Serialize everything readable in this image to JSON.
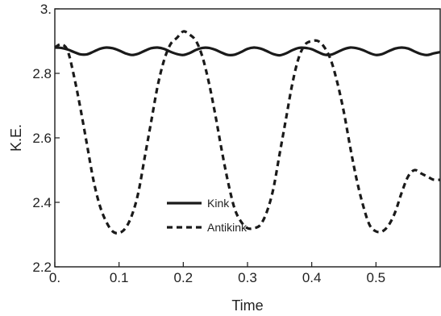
{
  "chart_data": {
    "type": "line",
    "title": "",
    "xlabel": "Time",
    "ylabel": "K.E.",
    "xlim": [
      0,
      0.6
    ],
    "ylim": [
      2.2,
      3.0
    ],
    "x_ticks": [
      0,
      0.1,
      0.2,
      0.3,
      0.4,
      0.5
    ],
    "x_tick_labels": [
      "0.",
      "0.1",
      "0.2",
      "0.3",
      "0.4",
      "0.5"
    ],
    "y_ticks": [
      2.2,
      2.4,
      2.6,
      2.8,
      3.0
    ],
    "y_tick_labels": [
      "2.2",
      "2.4",
      "2.6",
      "2.8",
      "3."
    ],
    "grid": false,
    "legend_position": "bottom-left",
    "series": [
      {
        "name": "Kink",
        "style": "solid",
        "color": "#1a1a1a",
        "x": [
          0.0,
          0.01,
          0.02,
          0.03,
          0.04,
          0.05,
          0.06,
          0.07,
          0.08,
          0.09,
          0.1,
          0.11,
          0.12,
          0.13,
          0.14,
          0.15,
          0.16,
          0.17,
          0.18,
          0.19,
          0.2,
          0.21,
          0.22,
          0.23,
          0.24,
          0.25,
          0.26,
          0.27,
          0.28,
          0.29,
          0.3,
          0.31,
          0.32,
          0.33,
          0.34,
          0.35,
          0.36,
          0.37,
          0.38,
          0.39,
          0.4,
          0.41,
          0.42,
          0.43,
          0.44,
          0.45,
          0.46,
          0.47,
          0.48,
          0.49,
          0.5,
          0.51,
          0.52,
          0.53,
          0.54,
          0.55,
          0.56,
          0.57,
          0.58,
          0.59,
          0.6
        ],
        "y": [
          2.88,
          2.879,
          2.874,
          2.866,
          2.859,
          2.859,
          2.867,
          2.876,
          2.88,
          2.878,
          2.871,
          2.862,
          2.857,
          2.861,
          2.87,
          2.878,
          2.88,
          2.876,
          2.867,
          2.86,
          2.857,
          2.863,
          2.873,
          2.879,
          2.879,
          2.873,
          2.864,
          2.857,
          2.858,
          2.866,
          2.876,
          2.88,
          2.877,
          2.869,
          2.86,
          2.856,
          2.862,
          2.872,
          2.879,
          2.879,
          2.875,
          2.866,
          2.858,
          2.858,
          2.866,
          2.875,
          2.88,
          2.878,
          2.872,
          2.863,
          2.857,
          2.86,
          2.869,
          2.877,
          2.88,
          2.877,
          2.868,
          2.86,
          2.857,
          2.862,
          2.866
        ]
      },
      {
        "name": "Antikink",
        "style": "dashed",
        "color": "#1a1a1a",
        "x": [
          0.0,
          0.01,
          0.02,
          0.03,
          0.04,
          0.05,
          0.06,
          0.07,
          0.08,
          0.09,
          0.1,
          0.11,
          0.12,
          0.13,
          0.14,
          0.15,
          0.16,
          0.17,
          0.18,
          0.19,
          0.2,
          0.21,
          0.22,
          0.23,
          0.24,
          0.25,
          0.26,
          0.27,
          0.28,
          0.29,
          0.3,
          0.31,
          0.32,
          0.33,
          0.34,
          0.35,
          0.36,
          0.37,
          0.38,
          0.39,
          0.4,
          0.41,
          0.42,
          0.43,
          0.44,
          0.45,
          0.46,
          0.47,
          0.48,
          0.49,
          0.5,
          0.51,
          0.52,
          0.53,
          0.54,
          0.55,
          0.56,
          0.57,
          0.58,
          0.59,
          0.6
        ],
        "y": [
          2.88,
          2.89,
          2.87,
          2.79,
          2.69,
          2.58,
          2.47,
          2.39,
          2.34,
          2.31,
          2.305,
          2.32,
          2.36,
          2.43,
          2.54,
          2.65,
          2.76,
          2.84,
          2.89,
          2.91,
          2.93,
          2.92,
          2.9,
          2.85,
          2.77,
          2.67,
          2.56,
          2.46,
          2.38,
          2.34,
          2.32,
          2.32,
          2.33,
          2.37,
          2.44,
          2.55,
          2.66,
          2.77,
          2.85,
          2.89,
          2.9,
          2.9,
          2.88,
          2.84,
          2.77,
          2.68,
          2.57,
          2.47,
          2.39,
          2.33,
          2.31,
          2.31,
          2.33,
          2.37,
          2.43,
          2.48,
          2.5,
          2.49,
          2.48,
          2.47,
          2.47
        ]
      }
    ]
  }
}
